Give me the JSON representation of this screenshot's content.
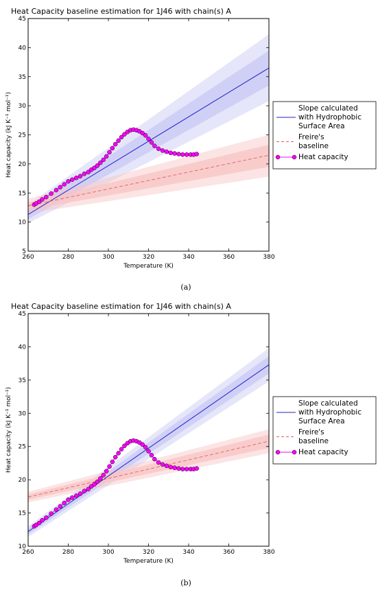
{
  "chart_data": [
    {
      "type": "line",
      "panel": "(a)",
      "title": "Heat Capacity baseline estimation for 1J46 with chain(s) A",
      "xlabel": "Temperature (K)",
      "ylabel": "Heat capacity (kJ K⁻¹ mol⁻¹)",
      "xlim": [
        260,
        380
      ],
      "ylim": [
        5,
        45
      ],
      "xticks": [
        "260",
        "280",
        "300",
        "320",
        "340",
        "360",
        "380"
      ],
      "yticks": [
        "5",
        "10",
        "15",
        "20",
        "25",
        "30",
        "35",
        "40",
        "45"
      ],
      "legend_position": "right (outside)",
      "colors": {
        "slope": "#2222cc",
        "freire": "#e06060",
        "heat": "#ff00ff",
        "slope_band": "#c8c8f4",
        "freire_band": "#f8c4c4"
      },
      "series": [
        {
          "name": "Slope calculated with Hydrophobic Surface Area",
          "legend_lines": [
            "Slope calculated",
            "with Hydrophobic",
            "Surface Area"
          ],
          "style": "solid",
          "x": [
            260,
            380
          ],
          "y": [
            11.3,
            36.5
          ],
          "band_inner_upper": [
            12.2,
            39.5
          ],
          "band_inner_lower": [
            10.5,
            33.5
          ],
          "band_outer_upper": [
            13.0,
            42.3
          ],
          "band_outer_lower": [
            9.8,
            30.8
          ]
        },
        {
          "name": "Freire's baseline",
          "legend_lines": [
            "Freire's",
            "baseline"
          ],
          "style": "dashed",
          "x": [
            260,
            380
          ],
          "y": [
            12.8,
            21.5
          ],
          "band_inner_upper": [
            13.4,
            23.3
          ],
          "band_inner_lower": [
            12.1,
            19.5
          ],
          "band_outer_upper": [
            14.0,
            25.0
          ],
          "band_outer_lower": [
            11.5,
            17.8
          ]
        },
        {
          "name": "Heat capacity",
          "legend_lines": [
            "Heat capacity"
          ],
          "style": "markers",
          "x": [
            263,
            264,
            265.5,
            267,
            269,
            271.5,
            274,
            276,
            278,
            280,
            282,
            284,
            286,
            288,
            290,
            291.5,
            293,
            294.5,
            296,
            297.5,
            299,
            300.5,
            302,
            303.5,
            305,
            306.5,
            308,
            309.5,
            311,
            312.5,
            314,
            315.5,
            317,
            318.5,
            320,
            321.5,
            323,
            325,
            327,
            329,
            331,
            333,
            335,
            337,
            339,
            341,
            342.5,
            344
          ],
          "y": [
            13.0,
            13.2,
            13.5,
            13.9,
            14.3,
            14.9,
            15.5,
            16.0,
            16.5,
            17.0,
            17.3,
            17.6,
            17.9,
            18.3,
            18.6,
            19.0,
            19.3,
            19.7,
            20.2,
            20.7,
            21.3,
            22.0,
            22.7,
            23.4,
            24.0,
            24.6,
            25.1,
            25.5,
            25.8,
            25.9,
            25.8,
            25.6,
            25.3,
            24.9,
            24.3,
            23.7,
            23.1,
            22.6,
            22.3,
            22.1,
            21.9,
            21.8,
            21.7,
            21.6,
            21.6,
            21.6,
            21.6,
            21.7
          ]
        }
      ]
    },
    {
      "type": "line",
      "panel": "(b)",
      "title": "Heat Capacity baseline estimation for 1J46 with chain(s) A",
      "xlabel": "Temperature (K)",
      "ylabel": "Heat capacity (kJ K⁻¹ mol⁻¹)",
      "xlim": [
        260,
        380
      ],
      "ylim": [
        10,
        45
      ],
      "xticks": [
        "260",
        "280",
        "300",
        "320",
        "340",
        "360",
        "380"
      ],
      "yticks": [
        "10",
        "15",
        "20",
        "25",
        "30",
        "35",
        "40",
        "45"
      ],
      "legend_position": "right (outside)",
      "colors": {
        "slope": "#2222cc",
        "freire": "#e06060",
        "heat": "#ff00ff",
        "slope_band": "#c8c8f4",
        "freire_band": "#f8c4c4"
      },
      "series": [
        {
          "name": "Slope calculated with Hydrophobic Surface Area",
          "legend_lines": [
            "Slope calculated",
            "with Hydrophobic",
            "Surface Area"
          ],
          "style": "solid",
          "x": [
            260,
            380
          ],
          "y": [
            12.2,
            37.3
          ],
          "band_inner_upper": [
            12.6,
            38.6
          ],
          "band_inner_lower": [
            11.8,
            36.0
          ],
          "band_outer_upper": [
            13.0,
            39.8
          ],
          "band_outer_lower": [
            11.4,
            34.8
          ]
        },
        {
          "name": "Freire's baseline",
          "legend_lines": [
            "Freire's",
            "baseline"
          ],
          "style": "dashed",
          "x": [
            260,
            380
          ],
          "y": [
            17.4,
            25.8
          ],
          "band_inner_upper": [
            17.8,
            26.8
          ],
          "band_inner_lower": [
            17.0,
            24.8
          ],
          "band_outer_upper": [
            18.2,
            27.6
          ],
          "band_outer_lower": [
            16.6,
            24.0
          ]
        },
        {
          "name": "Heat capacity",
          "legend_lines": [
            "Heat capacity"
          ],
          "style": "markers",
          "x": [
            263,
            264,
            265.5,
            267,
            269,
            271.5,
            274,
            276,
            278,
            280,
            282,
            284,
            286,
            288,
            290,
            291.5,
            293,
            294.5,
            296,
            297.5,
            299,
            300.5,
            302,
            303.5,
            305,
            306.5,
            308,
            309.5,
            311,
            312.5,
            314,
            315.5,
            317,
            318.5,
            320,
            321.5,
            323,
            325,
            327,
            329,
            331,
            333,
            335,
            337,
            339,
            341,
            342.5,
            344
          ],
          "y": [
            13.0,
            13.2,
            13.5,
            13.9,
            14.3,
            14.9,
            15.5,
            16.0,
            16.5,
            17.0,
            17.3,
            17.6,
            17.9,
            18.3,
            18.6,
            19.0,
            19.3,
            19.7,
            20.2,
            20.7,
            21.3,
            22.0,
            22.7,
            23.4,
            24.0,
            24.6,
            25.1,
            25.5,
            25.8,
            25.9,
            25.8,
            25.6,
            25.3,
            24.9,
            24.3,
            23.7,
            23.1,
            22.6,
            22.3,
            22.1,
            21.9,
            21.8,
            21.7,
            21.6,
            21.6,
            21.6,
            21.6,
            21.7
          ]
        }
      ]
    }
  ]
}
